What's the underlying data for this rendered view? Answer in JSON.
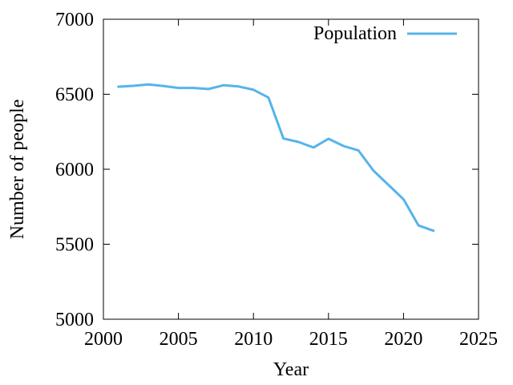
{
  "chart_data": {
    "type": "line",
    "title": "",
    "xlabel": "Year",
    "ylabel": "Number of people",
    "xlim": [
      2000,
      2025
    ],
    "ylim": [
      5000,
      7000
    ],
    "xticks": [
      2000,
      2005,
      2010,
      2015,
      2020,
      2025
    ],
    "yticks": [
      5000,
      5500,
      6000,
      6500,
      7000
    ],
    "grid": false,
    "legend": "top-right",
    "series": [
      {
        "name": "Population",
        "color": "#56b4e9",
        "x": [
          2001,
          2002,
          2003,
          2004,
          2005,
          2006,
          2007,
          2008,
          2009,
          2010,
          2011,
          2012,
          2013,
          2014,
          2015,
          2016,
          2017,
          2018,
          2019,
          2020,
          2021,
          2022
        ],
        "y": [
          6550,
          6556,
          6565,
          6555,
          6542,
          6542,
          6535,
          6560,
          6552,
          6530,
          6478,
          6205,
          6182,
          6145,
          6203,
          6155,
          6125,
          5990,
          5895,
          5800,
          5625,
          5590
        ]
      }
    ]
  }
}
